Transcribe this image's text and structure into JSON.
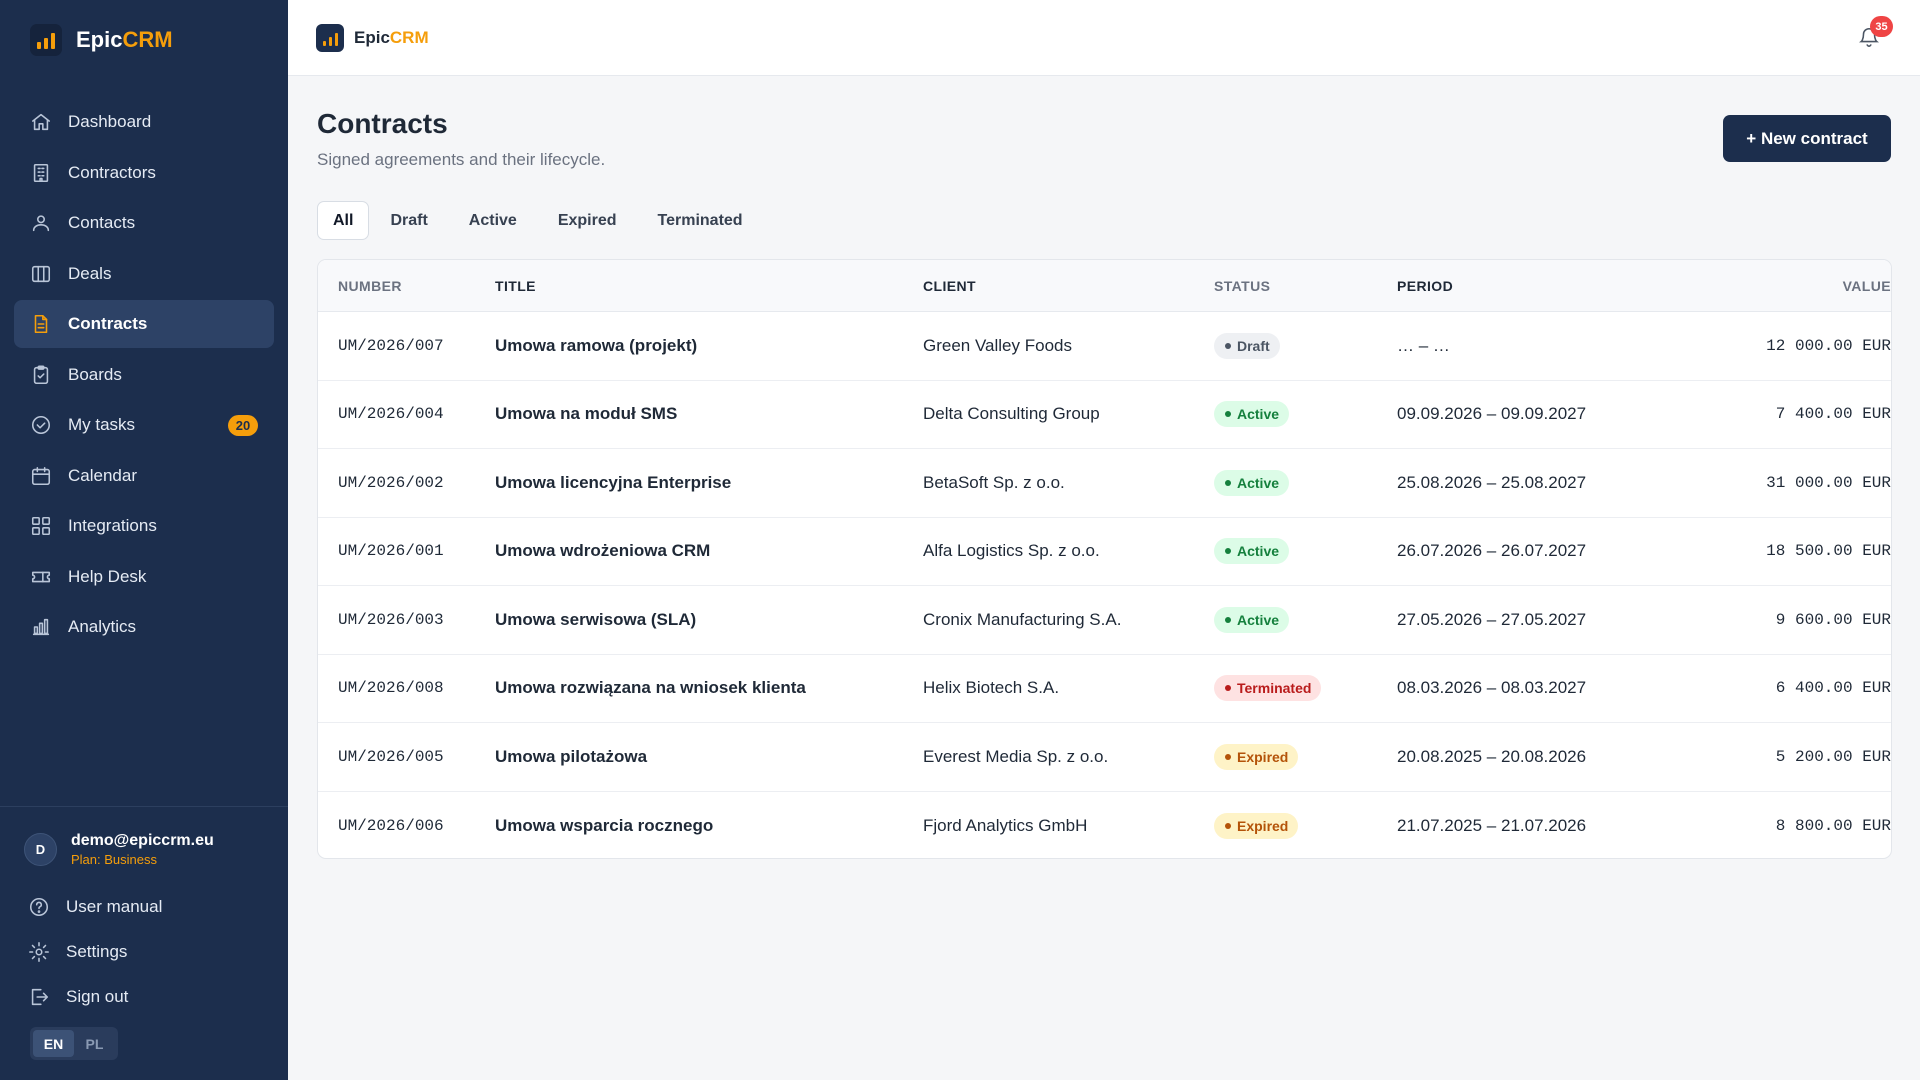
{
  "app": {
    "name_primary": "Epic",
    "name_accent": "CRM"
  },
  "sidebar": {
    "items": [
      {
        "label": "Dashboard",
        "icon": "home-icon"
      },
      {
        "label": "Contractors",
        "icon": "building-icon"
      },
      {
        "label": "Contacts",
        "icon": "user-icon"
      },
      {
        "label": "Deals",
        "icon": "columns-icon"
      },
      {
        "label": "Contracts",
        "icon": "document-icon",
        "active": true
      },
      {
        "label": "Boards",
        "icon": "clipboard-icon"
      },
      {
        "label": "My tasks",
        "icon": "check-circle-icon",
        "badge": "20"
      },
      {
        "label": "Calendar",
        "icon": "calendar-icon"
      },
      {
        "label": "Integrations",
        "icon": "grid-icon"
      },
      {
        "label": "Help Desk",
        "icon": "ticket-icon"
      },
      {
        "label": "Analytics",
        "icon": "bar-chart-icon"
      }
    ],
    "user": {
      "avatar_initial": "D",
      "email": "demo@epiccrm.eu",
      "plan": "Plan: Business"
    },
    "bottom_links": [
      {
        "label": "User manual",
        "icon": "help-circle-icon"
      },
      {
        "label": "Settings",
        "icon": "gear-icon"
      },
      {
        "label": "Sign out",
        "icon": "sign-out-icon"
      }
    ],
    "languages": [
      "EN",
      "PL"
    ],
    "selected_language": "EN"
  },
  "topbar": {
    "notifications_count": "35"
  },
  "page": {
    "title": "Contracts",
    "subtitle": "Signed agreements and their lifecycle.",
    "new_button": "+ New contract"
  },
  "tabs": [
    "All",
    "Draft",
    "Active",
    "Expired",
    "Terminated"
  ],
  "selected_tab": "All",
  "table": {
    "columns": [
      "NUMBER",
      "TITLE",
      "CLIENT",
      "STATUS",
      "PERIOD",
      "VALUE"
    ],
    "rows": [
      {
        "number": "UM/2026/007",
        "title": "Umowa ramowa (projekt)",
        "client": "Green Valley Foods",
        "status": "Draft",
        "status_kind": "draft",
        "period": "… – …",
        "value": "12 000.00 EUR"
      },
      {
        "number": "UM/2026/004",
        "title": "Umowa na moduł SMS",
        "client": "Delta Consulting Group",
        "status": "Active",
        "status_kind": "active",
        "period": "09.09.2026 – 09.09.2027",
        "value": "7 400.00 EUR"
      },
      {
        "number": "UM/2026/002",
        "title": "Umowa licencyjna Enterprise",
        "client": "BetaSoft Sp. z o.o.",
        "status": "Active",
        "status_kind": "active",
        "period": "25.08.2026 – 25.08.2027",
        "value": "31 000.00 EUR"
      },
      {
        "number": "UM/2026/001",
        "title": "Umowa wdrożeniowa CRM",
        "client": "Alfa Logistics Sp. z o.o.",
        "status": "Active",
        "status_kind": "active",
        "period": "26.07.2026 – 26.07.2027",
        "value": "18 500.00 EUR"
      },
      {
        "number": "UM/2026/003",
        "title": "Umowa serwisowa (SLA)",
        "client": "Cronix Manufacturing S.A.",
        "status": "Active",
        "status_kind": "active",
        "period": "27.05.2026 – 27.05.2027",
        "value": "9 600.00 EUR"
      },
      {
        "number": "UM/2026/008",
        "title": "Umowa rozwiązana na wniosek klienta",
        "client": "Helix Biotech S.A.",
        "status": "Terminated",
        "status_kind": "terminated",
        "period": "08.03.2026 – 08.03.2027",
        "value": "6 400.00 EUR"
      },
      {
        "number": "UM/2026/005",
        "title": "Umowa pilotażowa",
        "client": "Everest Media Sp. z o.o.",
        "status": "Expired",
        "status_kind": "expired",
        "period": "20.08.2025 – 20.08.2026",
        "value": "5 200.00 EUR"
      },
      {
        "number": "UM/2026/006",
        "title": "Umowa wsparcia rocznego",
        "client": "Fjord Analytics GmbH",
        "status": "Expired",
        "status_kind": "expired",
        "period": "21.07.2025 – 21.07.2026",
        "value": "8 800.00 EUR"
      }
    ]
  },
  "colors": {
    "sidebar_bg": "#1c2e4d",
    "accent": "#f59e0b",
    "active_status": "#15803d",
    "terminated_status": "#b91c1c",
    "expired_status": "#b45309"
  }
}
